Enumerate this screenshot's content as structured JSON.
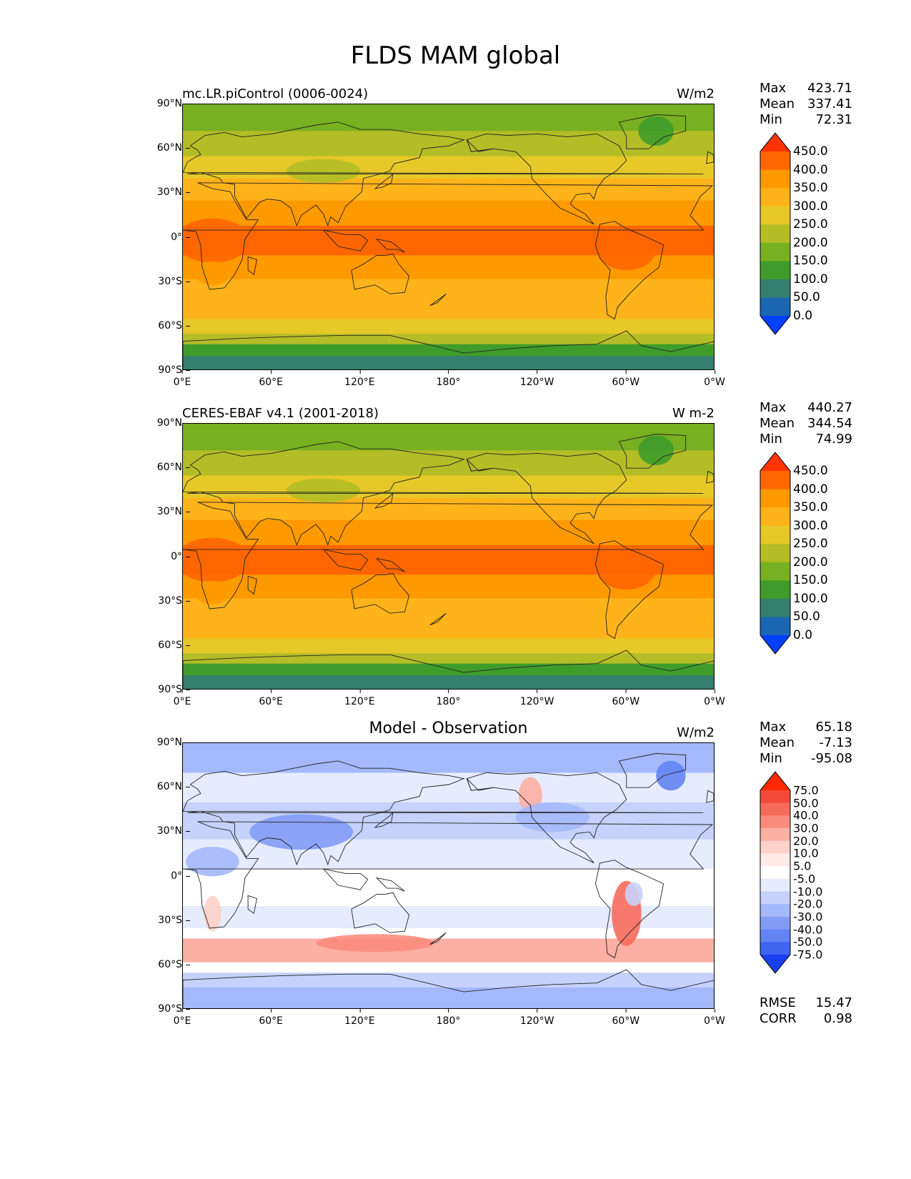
{
  "title": "FLDS MAM global",
  "lat_ticks": [
    "90°N",
    "60°N",
    "30°N",
    "0°",
    "30°S",
    "60°S",
    "90°S"
  ],
  "lon_ticks": [
    "0°E",
    "60°E",
    "120°E",
    "180°",
    "120°W",
    "60°W",
    "0°W"
  ],
  "panels": [
    {
      "id": "model",
      "subtitle": "mc.LR.piControl (0006-0024)",
      "subtitle_align": "left",
      "units": "W/m2",
      "stats": [
        {
          "label": "Max",
          "value": "423.71"
        },
        {
          "label": "Mean",
          "value": "337.41"
        },
        {
          "label": "Min",
          "value": "72.31"
        }
      ],
      "colorbar": {
        "levels": [
          "450.0",
          "400.0",
          "350.0",
          "300.0",
          "250.0",
          "200.0",
          "150.0",
          "100.0",
          "50.0",
          "0.0"
        ],
        "colors": [
          "#ff3300",
          "#ff6600",
          "#ff9900",
          "#ffb31a",
          "#e6c828",
          "#b3bd26",
          "#77b020",
          "#3f9c2a",
          "#347f6e",
          "#1a66b3",
          "#0040ff"
        ]
      },
      "field": "flux"
    },
    {
      "id": "obs",
      "subtitle": "CERES-EBAF v4.1 (2001-2018)",
      "subtitle_align": "left",
      "units": "W m-2",
      "stats": [
        {
          "label": "Max",
          "value": "440.27"
        },
        {
          "label": "Mean",
          "value": "344.54"
        },
        {
          "label": "Min",
          "value": "74.99"
        }
      ],
      "colorbar": {
        "levels": [
          "450.0",
          "400.0",
          "350.0",
          "300.0",
          "250.0",
          "200.0",
          "150.0",
          "100.0",
          "50.0",
          "0.0"
        ],
        "colors": [
          "#ff3300",
          "#ff6600",
          "#ff9900",
          "#ffb31a",
          "#e6c828",
          "#b3bd26",
          "#77b020",
          "#3f9c2a",
          "#347f6e",
          "#1a66b3",
          "#0040ff"
        ]
      },
      "field": "flux"
    },
    {
      "id": "diff",
      "subtitle": "Model - Observation",
      "subtitle_align": "center",
      "units": "W/m2",
      "stats": [
        {
          "label": "Max",
          "value": "65.18"
        },
        {
          "label": "Mean",
          "value": "-7.13"
        },
        {
          "label": "Min",
          "value": "-95.08"
        }
      ],
      "colorbar": {
        "levels": [
          "75.0",
          "50.0",
          "40.0",
          "30.0",
          "20.0",
          "10.0",
          "5.0",
          "-5.0",
          "-10.0",
          "-20.0",
          "-30.0",
          "-40.0",
          "-50.0",
          "-75.0"
        ],
        "colors": [
          "#ff2a00",
          "#f34a3a",
          "#f76b5c",
          "#fa8c7d",
          "#fcb0a3",
          "#fdd2c9",
          "#feeae6",
          "#ffffff",
          "#e6ecfe",
          "#c6d2fc",
          "#a4b8fa",
          "#829cf6",
          "#6384f3",
          "#3f65f1",
          "#1a3fef"
        ]
      },
      "field": "diff",
      "error_stats": [
        {
          "label": "RMSE",
          "value": "15.47"
        },
        {
          "label": "CORR",
          "value": "0.98"
        }
      ]
    }
  ]
}
